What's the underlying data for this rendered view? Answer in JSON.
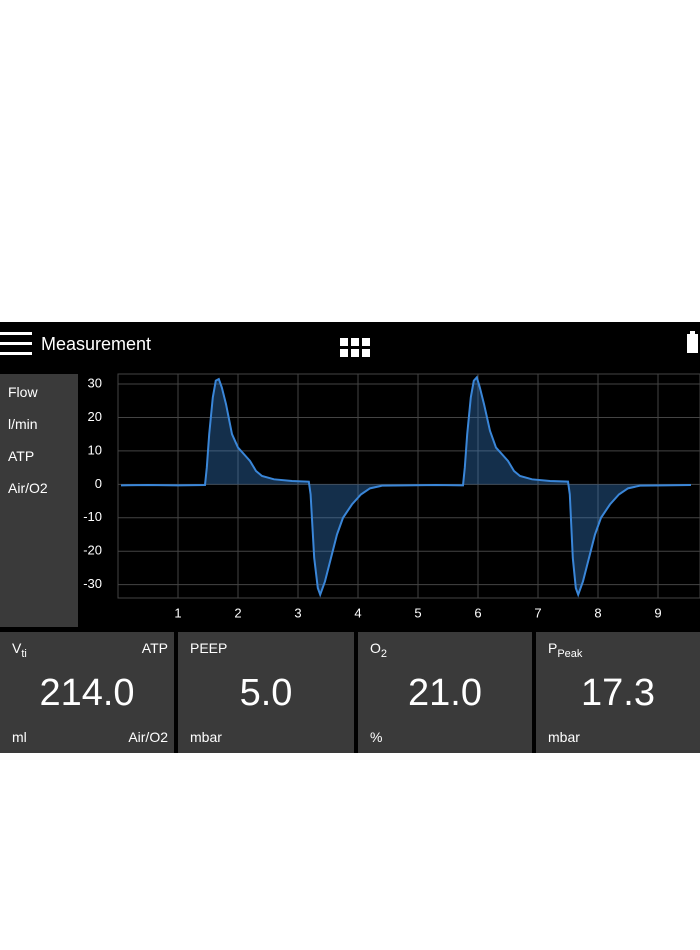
{
  "header": {
    "title": "Measurement"
  },
  "side_labels": [
    "Flow",
    "l/min",
    "ATP",
    "Air/O2"
  ],
  "chart_data": {
    "type": "line",
    "x": [
      0.05,
      0.5,
      1.0,
      1.45,
      1.48,
      1.52,
      1.58,
      1.63,
      1.68,
      1.73,
      1.8,
      1.9,
      2.0,
      2.1,
      2.2,
      2.3,
      2.4,
      2.6,
      2.9,
      3.18,
      3.21,
      3.27,
      3.33,
      3.37,
      3.45,
      3.55,
      3.65,
      3.75,
      3.9,
      4.05,
      4.2,
      4.4,
      4.8,
      5.3,
      5.75,
      5.78,
      5.82,
      5.88,
      5.93,
      5.98,
      6.03,
      6.1,
      6.2,
      6.3,
      6.4,
      6.5,
      6.6,
      6.7,
      6.9,
      7.2,
      7.5,
      7.53,
      7.58,
      7.63,
      7.67,
      7.75,
      7.85,
      7.95,
      8.05,
      8.2,
      8.35,
      8.5,
      8.7,
      9.1,
      9.55
    ],
    "values": [
      -0.3,
      -0.2,
      -0.3,
      -0.2,
      5,
      15,
      26,
      31,
      31.5,
      29,
      24,
      15,
      11,
      9,
      7,
      4,
      2.5,
      1.5,
      1,
      0.8,
      -3,
      -22,
      -31,
      -33,
      -29,
      -22,
      -15,
      -10,
      -6,
      -3,
      -1.2,
      -0.4,
      -0.3,
      -0.2,
      -0.3,
      5,
      15,
      26,
      31,
      32,
      29,
      24,
      16,
      11,
      9,
      7,
      4,
      2.5,
      1.5,
      1,
      0.8,
      -3,
      -22,
      -31,
      -33,
      -29,
      -22,
      -15,
      -10,
      -6,
      -3,
      -1.2,
      -0.4,
      -0.3,
      -0.2
    ],
    "color": "#3a86d8",
    "xlim": [
      0,
      9.7
    ],
    "xticks": [
      1,
      2,
      3,
      4,
      5,
      6,
      7,
      8,
      9
    ],
    "ylim": [
      -34,
      33
    ],
    "yticks": [
      30,
      20,
      10,
      0,
      -10,
      -20,
      -30
    ],
    "grid": true
  },
  "tiles": [
    {
      "label": "V",
      "label_sub": "ti",
      "corner": "ATP",
      "value": "214.0",
      "unit": "ml",
      "unit_right": "Air/O2"
    },
    {
      "label": "PEEP",
      "value": "5.0",
      "unit": "mbar"
    },
    {
      "label": "O",
      "label_sub": "2",
      "value": "21.0",
      "unit": "%"
    },
    {
      "label": "P",
      "label_sub": "Peak",
      "value": "17.3",
      "unit": "mbar"
    }
  ]
}
